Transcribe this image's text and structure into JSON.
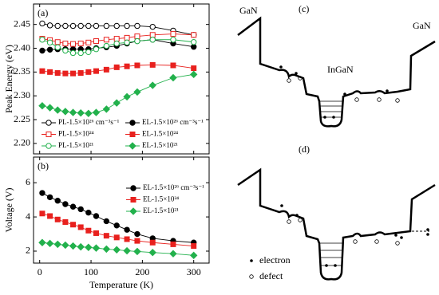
{
  "chart_data": [
    {
      "type": "line",
      "annotation": "(a)",
      "ylabel": "Peak Energy (eV)",
      "x": [
        5,
        20,
        35,
        50,
        65,
        80,
        95,
        110,
        130,
        150,
        170,
        190,
        220,
        260,
        300
      ],
      "xlim": [
        -12,
        330
      ],
      "xticks": [
        0,
        100,
        200,
        300
      ],
      "ylim": [
        2.178,
        2.493
      ],
      "yticks": [
        {
          "value": 2.2,
          "label": "2.20"
        },
        2.25,
        {
          "value": 2.3,
          "label": "2.30"
        },
        2.35,
        {
          "value": 2.4,
          "label": "2.40"
        },
        2.45
      ],
      "series": [
        {
          "name": "PL-1.5×10²⁶ cm⁻³s⁻¹",
          "color": "#000000",
          "marker": "circle-open",
          "values": [
            2.452,
            2.448,
            2.447,
            2.447,
            2.447,
            2.447,
            2.447,
            2.447,
            2.447,
            2.447,
            2.447,
            2.447,
            2.445,
            2.437,
            2.428
          ]
        },
        {
          "name": "EL-1.5×10²⁶ cm⁻³s⁻¹",
          "color": "#000000",
          "marker": "circle",
          "values": [
            2.395,
            2.397,
            2.398,
            2.398,
            2.398,
            2.398,
            2.398,
            2.4,
            2.402,
            2.405,
            2.41,
            2.415,
            2.418,
            2.41,
            2.403
          ]
        },
        {
          "name": "PL-1.5×10²⁴",
          "color": "#e8211e",
          "marker": "square-open",
          "values": [
            2.42,
            2.417,
            2.413,
            2.41,
            2.409,
            2.41,
            2.412,
            2.415,
            2.418,
            2.42,
            2.422,
            2.425,
            2.428,
            2.43,
            2.428
          ]
        },
        {
          "name": "EL-1.5×10²⁴",
          "color": "#e8211e",
          "marker": "square",
          "values": [
            2.352,
            2.35,
            2.348,
            2.347,
            2.347,
            2.348,
            2.35,
            2.352,
            2.355,
            2.36,
            2.362,
            2.364,
            2.365,
            2.364,
            2.358
          ]
        },
        {
          "name": "PL-1.5×10²¹",
          "color": "#22b14c",
          "marker": "circle-open",
          "values": [
            2.418,
            2.412,
            2.402,
            2.395,
            2.39,
            2.39,
            2.392,
            2.398,
            2.405,
            2.41,
            2.412,
            2.415,
            2.418,
            2.418,
            2.413
          ]
        },
        {
          "name": "EL-1.5×10²¹",
          "color": "#22b14c",
          "marker": "diamond",
          "values": [
            2.279,
            2.275,
            2.27,
            2.267,
            2.265,
            2.264,
            2.263,
            2.265,
            2.272,
            2.285,
            2.298,
            2.308,
            2.322,
            2.338,
            2.345
          ]
        }
      ]
    },
    {
      "type": "line",
      "annotation": "(b)",
      "ylabel": "Voltage (V)",
      "xlabel": "Temperature (K)",
      "x": [
        5,
        20,
        35,
        50,
        65,
        80,
        95,
        110,
        130,
        150,
        170,
        190,
        220,
        260,
        300
      ],
      "xlim": [
        -12,
        330
      ],
      "xticks": [
        0,
        100,
        200,
        300
      ],
      "ylim": [
        1.3,
        7.5
      ],
      "yticks": [
        2,
        4,
        6
      ],
      "series": [
        {
          "name": "EL-1.5×10²⁶ cm⁻³s⁻¹",
          "color": "#000000",
          "marker": "circle",
          "values": [
            5.4,
            5.15,
            4.95,
            4.75,
            4.6,
            4.45,
            4.25,
            4.05,
            3.75,
            3.5,
            3.25,
            3.0,
            2.75,
            2.6,
            2.5
          ]
        },
        {
          "name": "EL-1.5×10²⁴",
          "color": "#e8211e",
          "marker": "square",
          "values": [
            4.2,
            4.05,
            3.85,
            3.7,
            3.55,
            3.4,
            3.2,
            3.05,
            2.9,
            2.8,
            2.7,
            2.6,
            2.5,
            2.4,
            2.3
          ]
        },
        {
          "name": "EL-1.5×10²¹",
          "color": "#22b14c",
          "marker": "diamond",
          "values": [
            2.5,
            2.45,
            2.4,
            2.35,
            2.3,
            2.25,
            2.22,
            2.18,
            2.12,
            2.08,
            2.02,
            1.98,
            1.92,
            1.85,
            1.75
          ]
        }
      ]
    }
  ],
  "diagrams": {
    "c": {
      "label": "(c)",
      "left": "GaN",
      "well": "InGaN",
      "right": "GaN"
    },
    "d": {
      "label": "(d)",
      "legend": [
        "electron",
        "defect"
      ]
    }
  }
}
